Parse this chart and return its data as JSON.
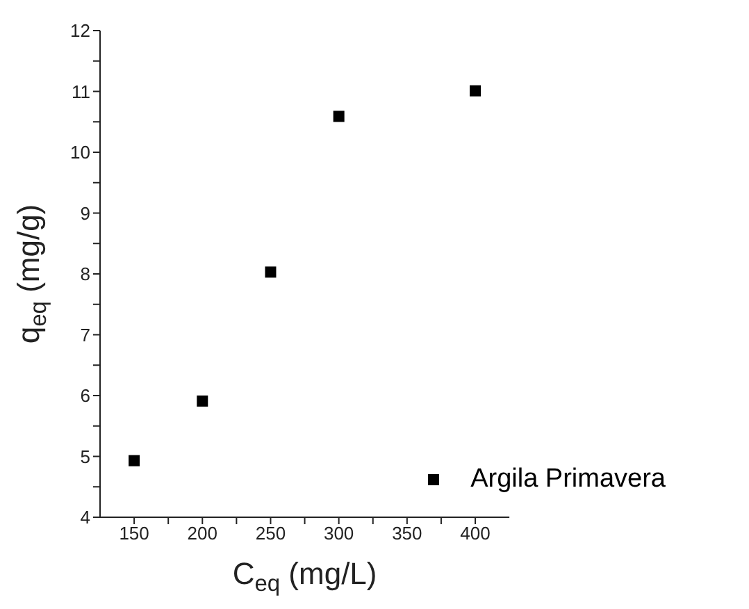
{
  "chart_data": {
    "type": "scatter",
    "xlabel": "C$_{eq}$ (mg/L)",
    "ylabel": "q$_{eq}$ (mg/g)",
    "x": [
      150,
      200,
      250,
      300,
      400
    ],
    "series": [
      {
        "name": "Argila Primavera",
        "color": "#000000",
        "values": [
          4.93,
          5.91,
          8.03,
          10.59,
          11.01
        ]
      }
    ],
    "xlim": [
      125,
      425
    ],
    "xticks": [
      150,
      {
        "value": 175,
        "label": null
      },
      200,
      {
        "value": 225,
        "label": null
      },
      250,
      {
        "value": 275,
        "label": null
      },
      300,
      {
        "value": 325,
        "label": null
      },
      350,
      {
        "value": 375,
        "label": null
      },
      400
    ],
    "ylim": [
      4,
      12
    ],
    "yticks": [
      4,
      {
        "value": 4.5,
        "label": null
      },
      5,
      {
        "value": 5.5,
        "label": null
      },
      6,
      {
        "value": 6.5,
        "label": null
      },
      7,
      {
        "value": 7.5,
        "label": null
      },
      8,
      {
        "value": 8.5,
        "label": null
      },
      9,
      {
        "value": 9.5,
        "label": null
      },
      10,
      {
        "value": 10.5,
        "label": null
      },
      11,
      {
        "value": 11.5,
        "label": null
      },
      12
    ],
    "marker": "square",
    "legend": "bottom right",
    "grid": false
  }
}
